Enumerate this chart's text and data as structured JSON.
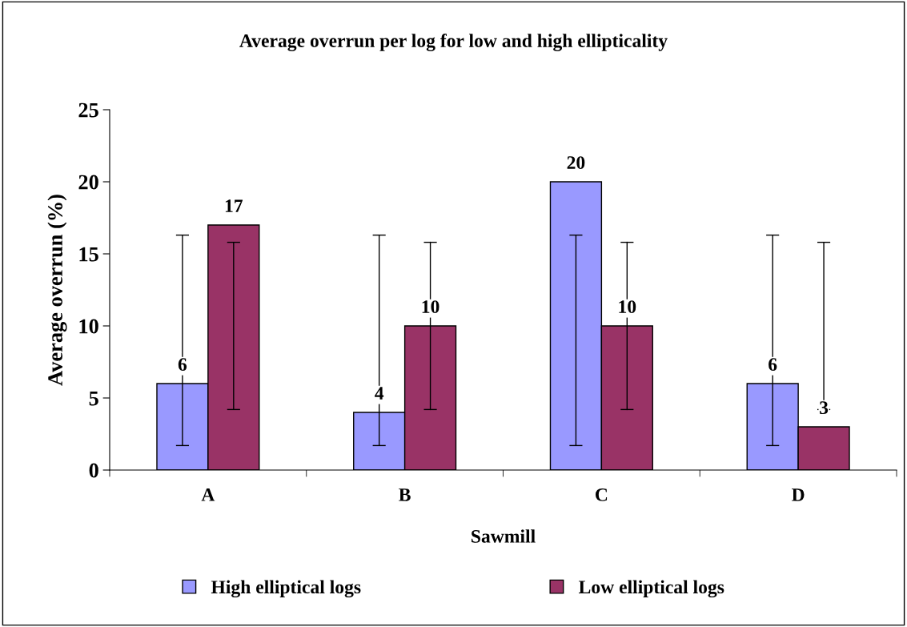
{
  "chart_data": {
    "type": "bar",
    "title": "Average overrun per log for low and high ellipticality",
    "xlabel": "Sawmill",
    "ylabel": "Average overrun (%)",
    "categories": [
      "A",
      "B",
      "C",
      "D"
    ],
    "series": [
      {
        "name": "High elliptical logs",
        "color": "#9999ff",
        "values": [
          6,
          4,
          20,
          6
        ],
        "errors": [
          [
            1.7,
            16.3
          ],
          [
            1.7,
            16.3
          ],
          [
            1.7,
            16.3
          ],
          [
            1.7,
            16.3
          ]
        ]
      },
      {
        "name": "Low elliptical logs",
        "color": "#993366",
        "values": [
          17,
          10,
          10,
          3
        ],
        "errors": [
          [
            4.2,
            15.8
          ],
          [
            4.2,
            15.8
          ],
          [
            4.2,
            15.8
          ],
          [
            4.2,
            15.8
          ]
        ]
      }
    ],
    "ylim": [
      0,
      25
    ],
    "yticks": [
      0,
      5,
      10,
      15,
      20,
      25
    ],
    "data_labels": true,
    "grid": false,
    "legend": "bottom"
  }
}
